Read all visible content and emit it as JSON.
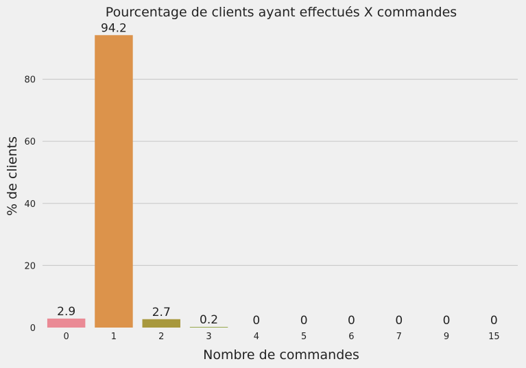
{
  "chart_data": {
    "type": "bar",
    "title": "Pourcentage de clients ayant effectués X commandes",
    "xlabel": "Nombre de commandes",
    "ylabel": "% de clients",
    "categories": [
      "0",
      "1",
      "2",
      "3",
      "4",
      "5",
      "6",
      "7",
      "9",
      "15"
    ],
    "values": [
      2.9,
      94.2,
      2.7,
      0.2,
      0,
      0,
      0,
      0,
      0,
      0
    ],
    "value_labels": [
      "2.9",
      "94.2",
      "2.7",
      "0.2",
      "0",
      "0",
      "0",
      "0",
      "0",
      "0"
    ],
    "yticks": [
      0,
      20,
      40,
      60,
      80
    ],
    "ylim": [
      0,
      98.9
    ],
    "grid": "horizontal",
    "colors": [
      "#ea8a95",
      "#dc934b",
      "#a8983d",
      "#8ea03b",
      "#4aa64a",
      "#42a48a",
      "#44a3a1",
      "#3aa6c2",
      "#8b9ae0",
      "#d67fd9"
    ]
  }
}
